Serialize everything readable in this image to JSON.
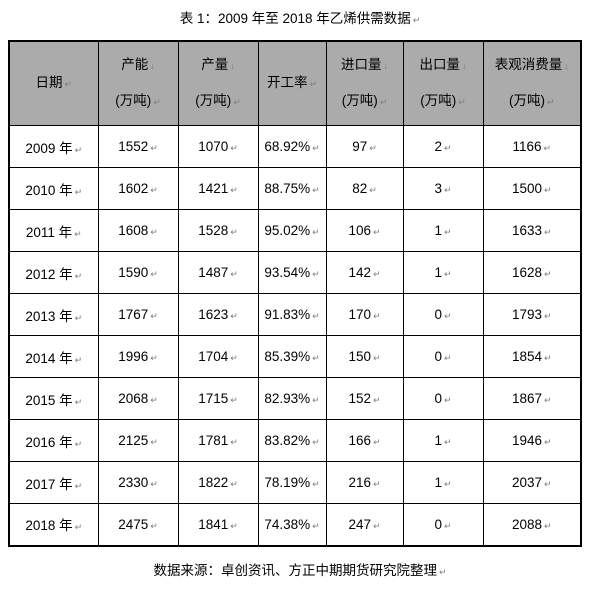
{
  "title": "表 1：2009 年至 2018 年乙烯供需数据",
  "source_note": "数据来源：卓创资讯、方正中期期货研究院整理",
  "marks": {
    "para": "↵",
    "line_break": "↓"
  },
  "colors": {
    "header_bg": "#ABABAB",
    "border": "#000000",
    "mark": "#7D7D7D",
    "text": "#000000",
    "page_bg": "#FFFFFF"
  },
  "table": {
    "header": [
      {
        "key": "date",
        "line1": "日期",
        "line2": ""
      },
      {
        "key": "capacity",
        "line1": "产能",
        "line2": "(万吨)"
      },
      {
        "key": "output",
        "line1": "产量",
        "line2": "(万吨)"
      },
      {
        "key": "operating_rate",
        "line1": "开工率",
        "line2": ""
      },
      {
        "key": "imports",
        "line1": "进口量",
        "line2": "(万吨)"
      },
      {
        "key": "exports",
        "line1": "出口量",
        "line2": "(万吨)"
      },
      {
        "key": "apparent_consumption",
        "line1": "表观消费量",
        "line2": "(万吨)"
      }
    ],
    "rows": [
      {
        "date": "2009 年",
        "capacity": "1552",
        "output": "1070",
        "operating_rate": "68.92%",
        "imports": "97",
        "exports": "2",
        "apparent_consumption": "1166"
      },
      {
        "date": "2010 年",
        "capacity": "1602",
        "output": "1421",
        "operating_rate": "88.75%",
        "imports": "82",
        "exports": "3",
        "apparent_consumption": "1500"
      },
      {
        "date": "2011 年",
        "capacity": "1608",
        "output": "1528",
        "operating_rate": "95.02%",
        "imports": "106",
        "exports": "1",
        "apparent_consumption": "1633"
      },
      {
        "date": "2012 年",
        "capacity": "1590",
        "output": "1487",
        "operating_rate": "93.54%",
        "imports": "142",
        "exports": "1",
        "apparent_consumption": "1628"
      },
      {
        "date": "2013 年",
        "capacity": "1767",
        "output": "1623",
        "operating_rate": "91.83%",
        "imports": "170",
        "exports": "0",
        "apparent_consumption": "1793"
      },
      {
        "date": "2014 年",
        "capacity": "1996",
        "output": "1704",
        "operating_rate": "85.39%",
        "imports": "150",
        "exports": "0",
        "apparent_consumption": "1854"
      },
      {
        "date": "2015 年",
        "capacity": "2068",
        "output": "1715",
        "operating_rate": "82.93%",
        "imports": "152",
        "exports": "0",
        "apparent_consumption": "1867"
      },
      {
        "date": "2016 年",
        "capacity": "2125",
        "output": "1781",
        "operating_rate": "83.82%",
        "imports": "166",
        "exports": "1",
        "apparent_consumption": "1946"
      },
      {
        "date": "2017 年",
        "capacity": "2330",
        "output": "1822",
        "operating_rate": "78.19%",
        "imports": "216",
        "exports": "1",
        "apparent_consumption": "2037"
      },
      {
        "date": "2018 年",
        "capacity": "2475",
        "output": "1841",
        "operating_rate": "74.38%",
        "imports": "247",
        "exports": "0",
        "apparent_consumption": "2088"
      }
    ]
  }
}
